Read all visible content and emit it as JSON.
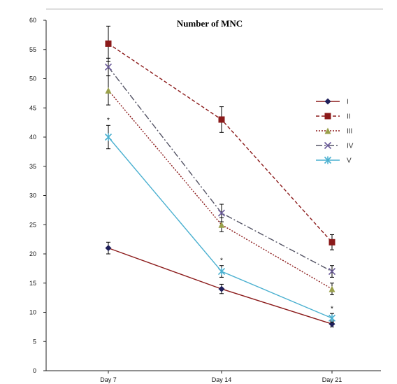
{
  "chart_data": {
    "type": "line",
    "title": "Number of MNC",
    "xlabel": "",
    "ylabel": "",
    "categories": [
      "Day 7",
      "Day 14",
      "Day 21"
    ],
    "ylim": [
      0,
      60
    ],
    "yticks": [
      0,
      5,
      10,
      15,
      20,
      25,
      30,
      35,
      40,
      45,
      50,
      55,
      60
    ],
    "grid": false,
    "legend_position": "right",
    "series": [
      {
        "name": "I",
        "values": [
          21,
          14,
          8
        ],
        "errors": [
          1,
          0.8,
          0.5
        ],
        "color": "#8b1a1a",
        "line": "solid",
        "marker": "diamond",
        "marker_color": "#1f1f5a"
      },
      {
        "name": "II",
        "values": [
          56,
          43,
          22
        ],
        "errors": [
          3,
          2.2,
          1.3
        ],
        "color": "#8b1a1a",
        "line": "dashed",
        "marker": "square",
        "marker_color": "#8b1a1a"
      },
      {
        "name": "III",
        "values": [
          48,
          25,
          14
        ],
        "errors": [
          2.5,
          1.2,
          1
        ],
        "color": "#8b1a1a",
        "line": "dotted",
        "marker": "triangle",
        "marker_color": "#9aa04a"
      },
      {
        "name": "IV",
        "values": [
          52,
          27,
          17
        ],
        "errors": [
          1.5,
          1.5,
          1
        ],
        "color": "#555566",
        "line": "dashdot",
        "marker": "x",
        "marker_color": "#6a5a9a"
      },
      {
        "name": "V",
        "values": [
          40,
          17,
          9
        ],
        "errors": [
          2,
          1,
          0.8
        ],
        "color": "#4ab0d0",
        "line": "solid",
        "marker": "star",
        "marker_color": "#4ab0d0"
      }
    ],
    "annotations": [
      {
        "text": "*",
        "category": "Day 7",
        "value": 43
      },
      {
        "text": "*",
        "category": "Day 14",
        "value": 19
      },
      {
        "text": "*",
        "category": "Day 21",
        "value": 10.7
      }
    ]
  }
}
